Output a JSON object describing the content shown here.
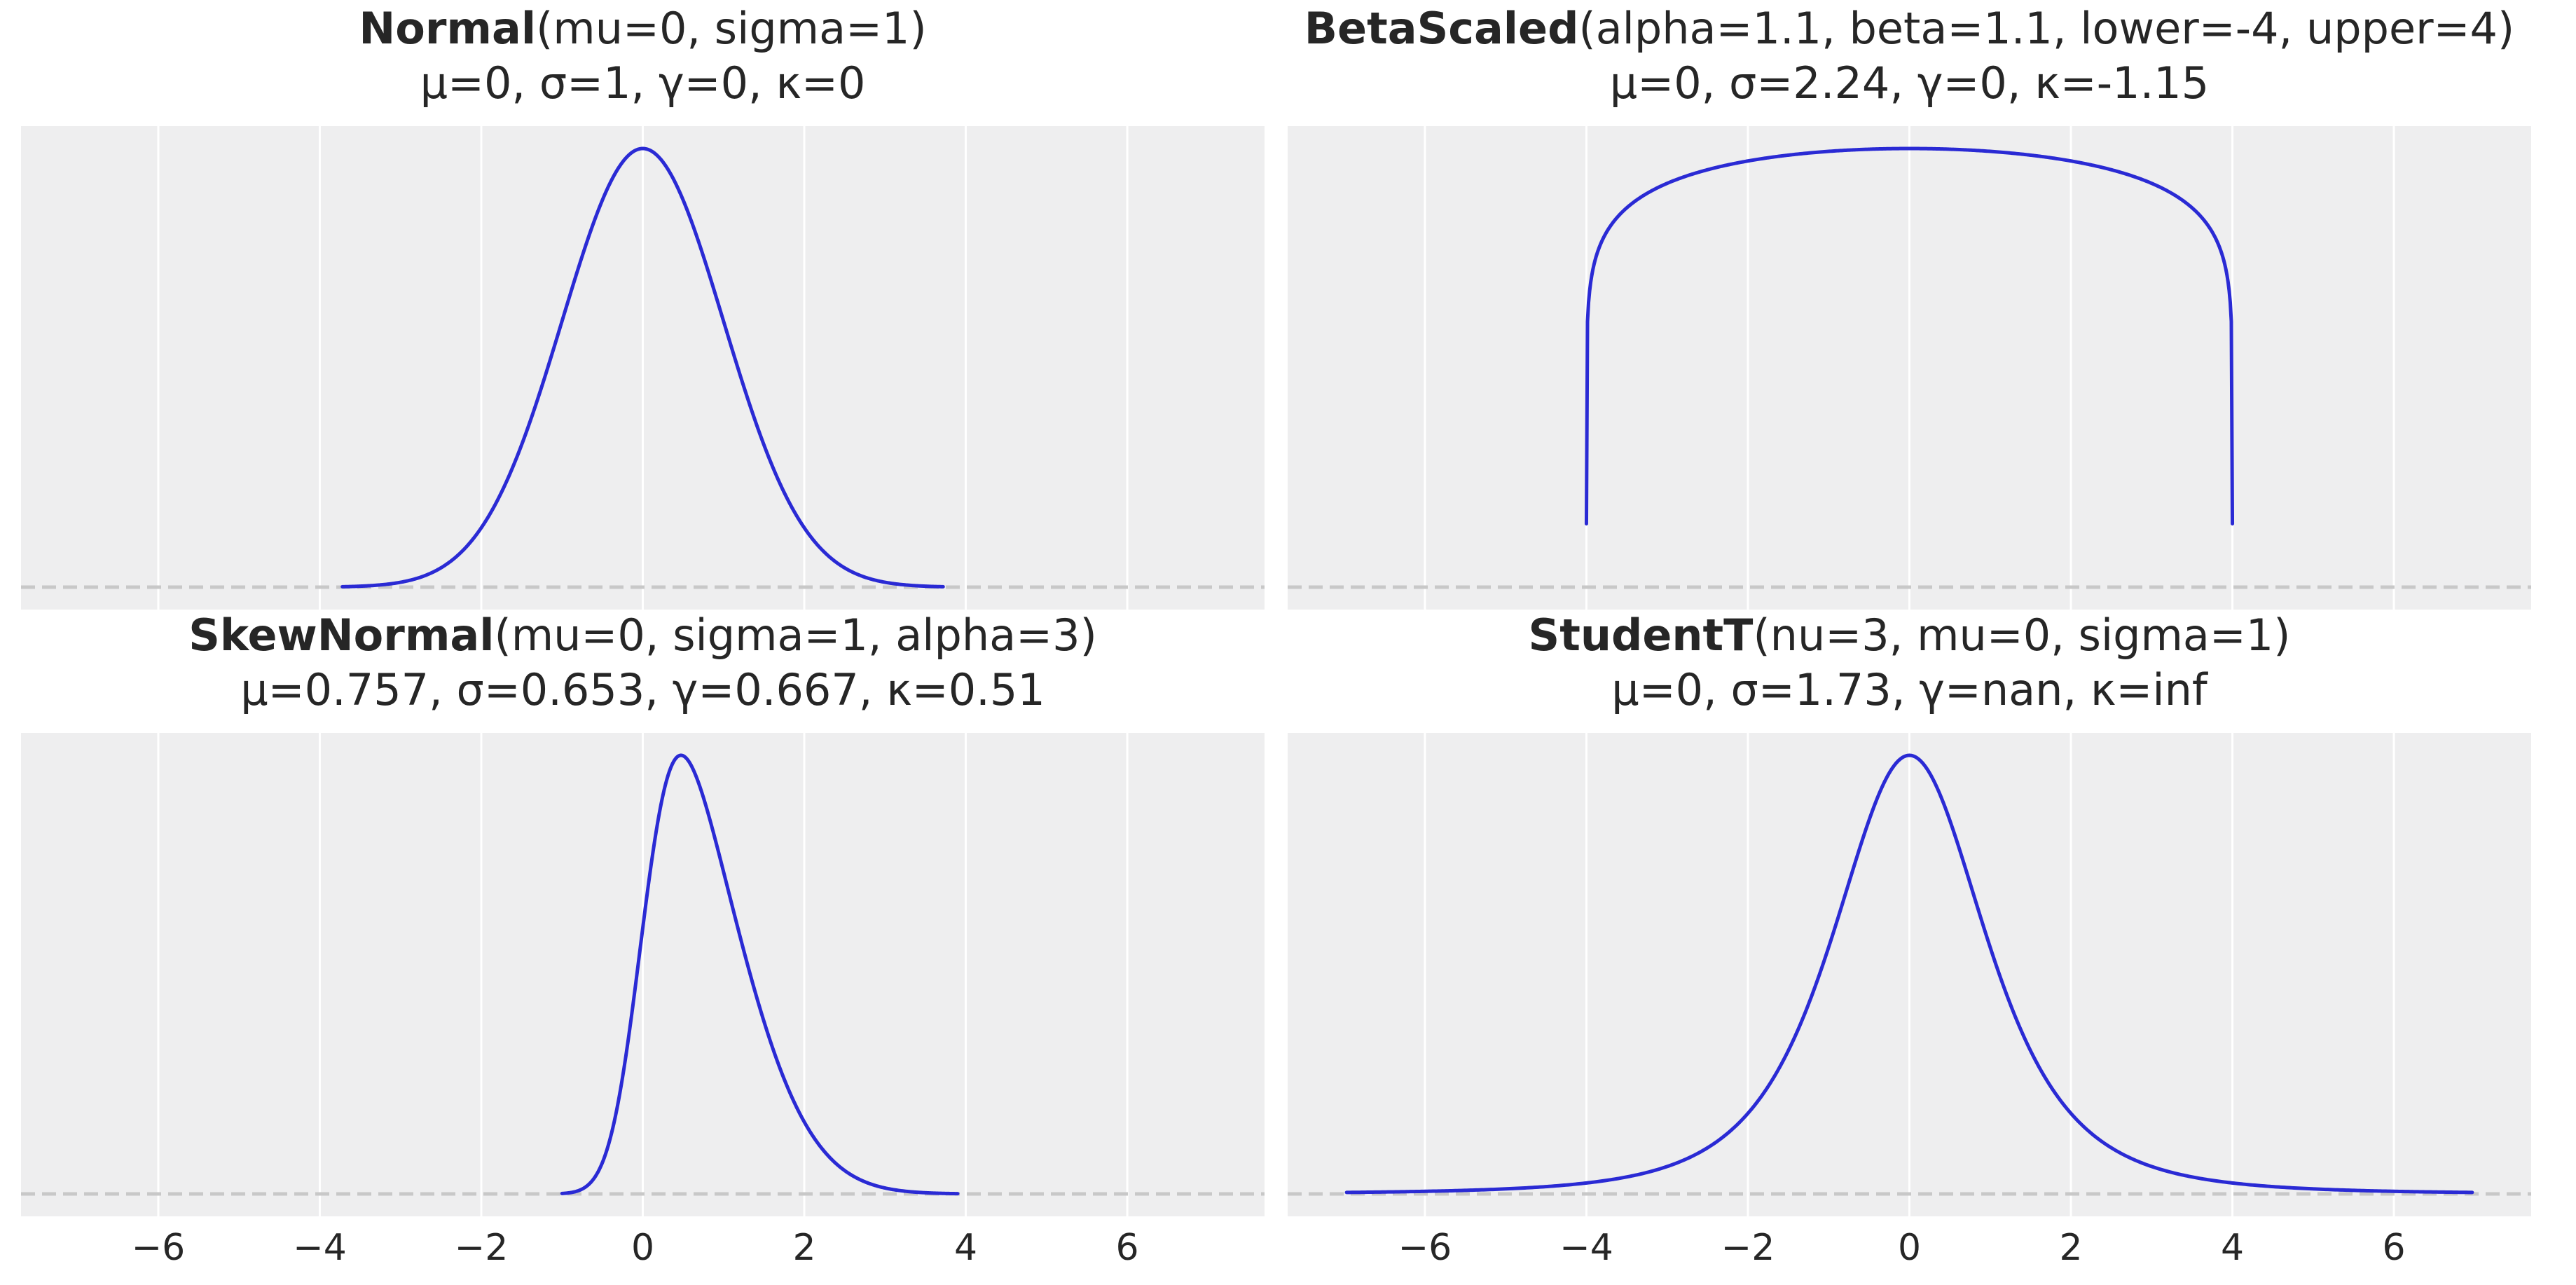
{
  "colors": {
    "panel_background": "#eeeeef",
    "grid": "#ffffff",
    "curve": "#2a2ad4",
    "baseline": "#c8c8c8",
    "text": "#262626"
  },
  "chart_data": [
    {
      "type": "line",
      "title_bold": "Normal",
      "title_rest": "(mu=0, sigma=1)",
      "subtitle": "μ=0, σ=1, γ=0, κ=0",
      "distribution": {
        "name": "normal",
        "mu": 0,
        "sigma": 1
      },
      "x_range": [
        -3.72,
        3.72
      ],
      "xlim": [
        -7.7,
        7.7
      ],
      "xticks": [
        -6,
        -4,
        -2,
        0,
        2,
        4,
        6
      ],
      "xtick_labels": [],
      "grid": true,
      "baseline_style": "dashed"
    },
    {
      "type": "line",
      "title_bold": "BetaScaled",
      "title_rest": "(alpha=1.1, beta=1.1, lower=-4, upper=4)",
      "subtitle": "μ=0, σ=2.24, γ=0, κ=-1.15",
      "distribution": {
        "name": "betascaled",
        "alpha": 1.1,
        "beta": 1.1,
        "lower": -4,
        "upper": 4
      },
      "x_range": [
        -4,
        4
      ],
      "xlim": [
        -7.7,
        7.7
      ],
      "xticks": [
        -6,
        -4,
        -2,
        0,
        2,
        4,
        6
      ],
      "xtick_labels": [],
      "grid": true,
      "baseline_style": "dashed"
    },
    {
      "type": "line",
      "title_bold": "SkewNormal",
      "title_rest": "(mu=0, sigma=1, alpha=3)",
      "subtitle": "μ=0.757, σ=0.653, γ=0.667, κ=0.51",
      "distribution": {
        "name": "skewnormal",
        "mu": 0,
        "sigma": 1,
        "alpha": 3
      },
      "x_range": [
        -1.0,
        3.9
      ],
      "xlim": [
        -7.7,
        7.7
      ],
      "xticks": [
        -6,
        -4,
        -2,
        0,
        2,
        4,
        6
      ],
      "xtick_labels": [
        "−6",
        "−4",
        "−2",
        "0",
        "2",
        "4",
        "6"
      ],
      "grid": true,
      "baseline_style": "dashed"
    },
    {
      "type": "line",
      "title_bold": "StudentT",
      "title_rest": "(nu=3, mu=0, sigma=1)",
      "subtitle": "μ=0, σ=1.73, γ=nan, κ=inf",
      "distribution": {
        "name": "studentt",
        "nu": 3,
        "mu": 0,
        "sigma": 1
      },
      "x_range": [
        -6.97,
        6.97
      ],
      "xlim": [
        -7.7,
        7.7
      ],
      "xticks": [
        -6,
        -4,
        -2,
        0,
        2,
        4,
        6
      ],
      "xtick_labels": [
        "−6",
        "−4",
        "−2",
        "0",
        "2",
        "4",
        "6"
      ],
      "grid": true,
      "baseline_style": "dashed"
    }
  ]
}
